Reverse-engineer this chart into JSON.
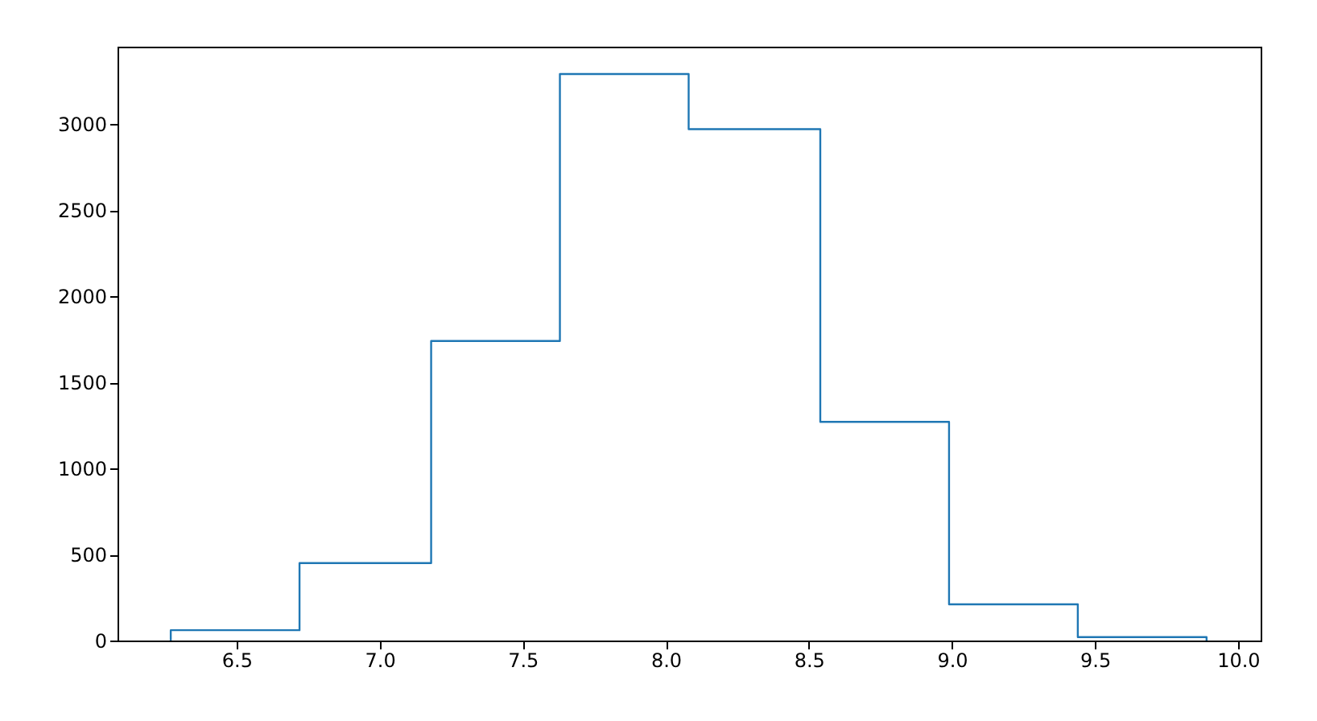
{
  "chart_data": {
    "type": "histogram",
    "bins": [
      6.27,
      6.72,
      7.18,
      7.63,
      8.08,
      8.54,
      8.99,
      9.44,
      9.89
    ],
    "values": [
      60,
      450,
      1740,
      3290,
      2970,
      1270,
      210,
      20
    ],
    "color": "#1f77b4",
    "xlim": [
      6.084,
      10.079
    ],
    "xticks": [
      6.5,
      {
        "value": 7,
        "label": "7.0"
      },
      7.5,
      {
        "value": 8,
        "label": "8.0"
      },
      8.5,
      {
        "value": 9,
        "label": "9.0"
      },
      9.5,
      {
        "value": 10,
        "label": "10.0"
      }
    ],
    "ylim": [
      0,
      3449
    ],
    "yticks": [
      0,
      500,
      1000,
      1500,
      2000,
      2500,
      3000
    ],
    "grid": false
  }
}
